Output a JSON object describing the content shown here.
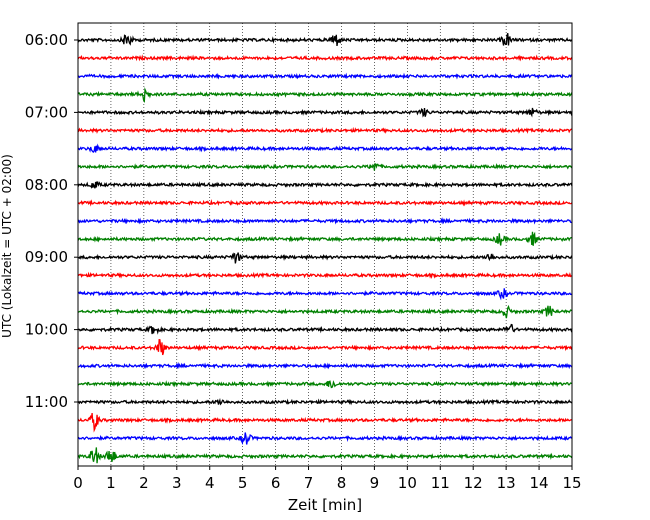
{
  "chart_data": {
    "type": "line",
    "title": "",
    "xlabel": "Zeit  [min]",
    "ylabel": "UTC (Lokalzeit = UTC + 02:00)",
    "xlim": [
      0,
      15
    ],
    "x_ticks": [
      0,
      1,
      2,
      3,
      4,
      5,
      6,
      7,
      8,
      9,
      10,
      11,
      12,
      13,
      14,
      15
    ],
    "y_tick_labels": [
      "06:00",
      "07:00",
      "08:00",
      "09:00",
      "10:00",
      "11:00"
    ],
    "grid": "vertical dotted",
    "trace_interval_minutes": 15,
    "trace_colors": [
      "#000000",
      "#ff0000",
      "#0000ff",
      "#008000"
    ],
    "traces": [
      {
        "start": "06:00",
        "color": "#000000",
        "events": [
          {
            "minute": 1.5,
            "amplitude": 0.9
          },
          {
            "minute": 7.8,
            "amplitude": 0.8
          },
          {
            "minute": 13.0,
            "amplitude": 0.8
          }
        ]
      },
      {
        "start": "06:15",
        "color": "#ff0000",
        "events": []
      },
      {
        "start": "06:30",
        "color": "#0000ff",
        "events": []
      },
      {
        "start": "06:45",
        "color": "#008000",
        "events": [
          {
            "minute": 2.0,
            "amplitude": 0.9
          }
        ]
      },
      {
        "start": "07:00",
        "color": "#000000",
        "events": [
          {
            "minute": 10.5,
            "amplitude": 0.4
          },
          {
            "minute": 13.8,
            "amplitude": 0.4
          }
        ]
      },
      {
        "start": "07:15",
        "color": "#ff0000",
        "events": []
      },
      {
        "start": "07:30",
        "color": "#0000ff",
        "events": [
          {
            "minute": 0.5,
            "amplitude": 0.4
          }
        ]
      },
      {
        "start": "07:45",
        "color": "#008000",
        "events": [
          {
            "minute": 9.0,
            "amplitude": 0.5
          }
        ]
      },
      {
        "start": "08:00",
        "color": "#000000",
        "events": [
          {
            "minute": 0.5,
            "amplitude": 0.4
          }
        ]
      },
      {
        "start": "08:15",
        "color": "#ff0000",
        "events": []
      },
      {
        "start": "08:30",
        "color": "#0000ff",
        "events": []
      },
      {
        "start": "08:45",
        "color": "#008000",
        "events": [
          {
            "minute": 12.8,
            "amplitude": 0.6
          },
          {
            "minute": 13.8,
            "amplitude": 0.7
          }
        ]
      },
      {
        "start": "09:00",
        "color": "#000000",
        "events": [
          {
            "minute": 4.8,
            "amplitude": 0.6
          },
          {
            "minute": 12.5,
            "amplitude": 0.4
          }
        ]
      },
      {
        "start": "09:15",
        "color": "#ff0000",
        "events": []
      },
      {
        "start": "09:30",
        "color": "#0000ff",
        "events": [
          {
            "minute": 12.9,
            "amplitude": 0.5
          }
        ]
      },
      {
        "start": "09:45",
        "color": "#008000",
        "events": [
          {
            "minute": 13.0,
            "amplitude": 0.6
          },
          {
            "minute": 14.3,
            "amplitude": 0.6
          }
        ]
      },
      {
        "start": "10:00",
        "color": "#000000",
        "events": [
          {
            "minute": 2.3,
            "amplitude": 0.5
          },
          {
            "minute": 13.1,
            "amplitude": 0.6
          }
        ]
      },
      {
        "start": "10:15",
        "color": "#ff0000",
        "events": [
          {
            "minute": 2.5,
            "amplitude": 1.0
          }
        ]
      },
      {
        "start": "10:30",
        "color": "#0000ff",
        "events": []
      },
      {
        "start": "10:45",
        "color": "#008000",
        "events": [
          {
            "minute": 7.7,
            "amplitude": 0.5
          }
        ]
      },
      {
        "start": "11:00",
        "color": "#000000",
        "events": [
          {
            "minute": 4.3,
            "amplitude": 0.3
          }
        ]
      },
      {
        "start": "11:15",
        "color": "#ff0000",
        "events": [
          {
            "minute": 0.5,
            "amplitude": 1.0
          }
        ]
      },
      {
        "start": "11:30",
        "color": "#0000ff",
        "events": [
          {
            "minute": 5.1,
            "amplitude": 0.8
          }
        ]
      },
      {
        "start": "11:45",
        "color": "#008000",
        "events": [
          {
            "minute": 0.5,
            "amplitude": 1.1
          },
          {
            "minute": 1.0,
            "amplitude": 0.9
          }
        ]
      }
    ]
  }
}
